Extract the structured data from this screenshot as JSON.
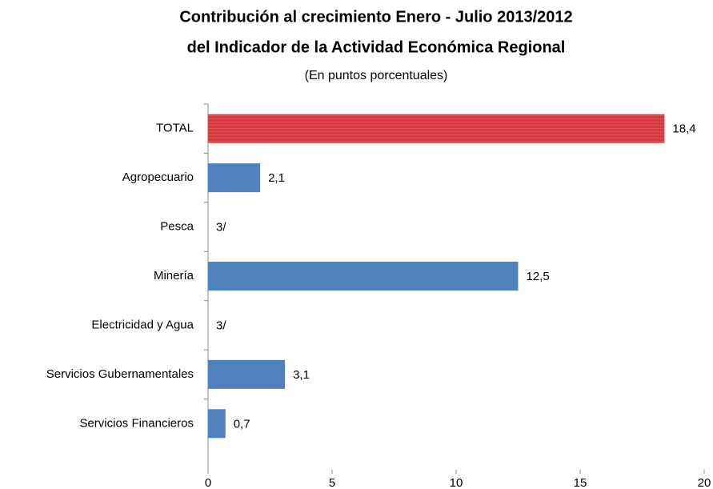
{
  "chart_data": {
    "type": "hbar",
    "title": [
      "Contribución al crecimiento Enero - Julio 2013/2012",
      "del Indicador de la Actividad Económica Regional"
    ],
    "subtitle": "(En puntos porcentuales)",
    "categories": [
      "TOTAL",
      "Agropecuario",
      "Pesca",
      "Minería",
      "Electricidad y Agua",
      "Servicios Gubernamentales",
      "Servicios Financieros"
    ],
    "values": [
      18.4,
      2.1,
      null,
      12.5,
      null,
      3.1,
      0.7
    ],
    "value_labels": [
      "18,4",
      "2,1",
      "3/",
      "12,5",
      "3/",
      "3,1",
      "0,7"
    ],
    "colors": [
      "#d9393f",
      "#4f81bd",
      "#4f81bd",
      "#4f81bd",
      "#4f81bd",
      "#4f81bd",
      "#4f81bd"
    ],
    "xlim": [
      0,
      20
    ],
    "xticks": [
      0,
      5,
      10,
      15,
      20
    ],
    "grid": false
  }
}
